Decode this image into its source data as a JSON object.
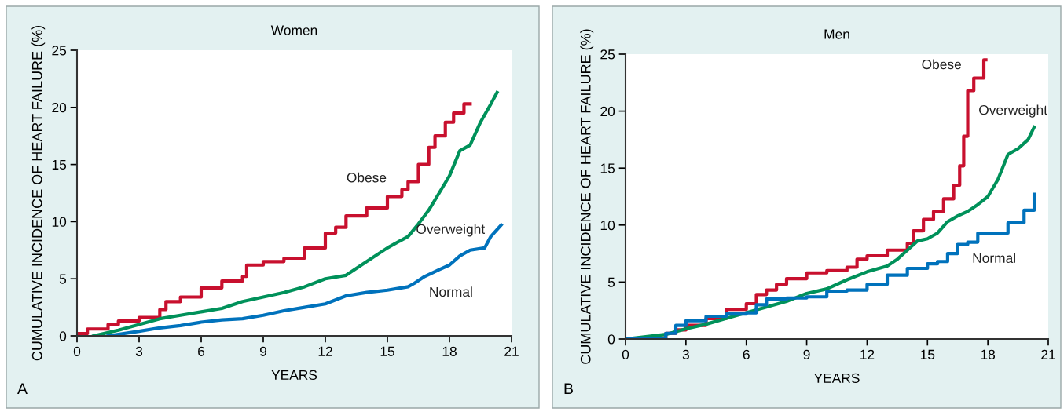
{
  "chart_data": [
    {
      "type": "line",
      "title": "Women",
      "xlabel": "YEARS",
      "ylabel": "CUMULATIVE INCIDENCE OF HEART FAILURE (%)",
      "xlim": [
        0,
        21
      ],
      "ylim": [
        0,
        25
      ],
      "xticks": [
        0,
        3,
        6,
        9,
        12,
        15,
        18,
        21
      ],
      "yticks": [
        0,
        5,
        10,
        15,
        20,
        25
      ],
      "grid": false,
      "legend": false,
      "annotations": [
        "A"
      ],
      "series": [
        {
          "name": "Obese",
          "type": "step",
          "color": "#c8102e",
          "x": [
            0,
            0.5,
            1.5,
            2,
            3,
            4,
            4.3,
            5,
            6,
            7,
            8,
            8.2,
            9,
            10,
            11,
            12,
            12.5,
            13,
            14,
            15,
            15.7,
            16,
            16.5,
            17,
            17.3,
            17.8,
            18.2,
            18.7,
            19
          ],
          "values": [
            0.2,
            0.6,
            1.0,
            1.3,
            1.6,
            2.3,
            3.0,
            3.4,
            4.2,
            4.8,
            5.2,
            6.2,
            6.5,
            6.8,
            7.7,
            9.0,
            9.5,
            10.5,
            11.2,
            12.2,
            12.8,
            13.5,
            15,
            16.5,
            17.5,
            18.7,
            19.5,
            20.3,
            20.3
          ]
        },
        {
          "name": "Overweight",
          "color": "#00915a",
          "x": [
            0.8,
            2,
            3,
            4,
            5,
            6,
            7,
            8,
            9,
            10,
            11,
            12,
            13,
            14,
            15,
            16,
            16.5,
            17,
            17.5,
            18,
            18.5,
            19,
            19.5,
            20,
            20.3
          ],
          "values": [
            0,
            0.5,
            1.0,
            1.5,
            1.8,
            2.1,
            2.4,
            3.0,
            3.4,
            3.8,
            4.3,
            5.0,
            5.3,
            6.5,
            7.7,
            8.7,
            9.8,
            11,
            12.5,
            14,
            16.2,
            16.7,
            18.7,
            20.3,
            21.3
          ]
        },
        {
          "name": "Normal",
          "color": "#0072bc",
          "x": [
            1.5,
            3,
            4,
            5,
            6,
            7,
            8,
            9,
            10,
            11,
            12,
            13,
            14,
            15,
            16,
            16.3,
            16.8,
            17.5,
            18,
            18.5,
            19,
            19.7,
            20,
            20.5
          ],
          "values": [
            0,
            0.4,
            0.7,
            0.9,
            1.2,
            1.4,
            1.5,
            1.8,
            2.2,
            2.5,
            2.8,
            3.5,
            3.8,
            4.0,
            4.3,
            4.6,
            5.2,
            5.8,
            6.2,
            7.0,
            7.5,
            7.7,
            8.7,
            9.7
          ]
        }
      ]
    },
    {
      "type": "line",
      "title": "Men",
      "xlabel": "YEARS",
      "ylabel": "CUMULATIVE INCIDENCE OF HEART FAILURE (%)",
      "xlim": [
        0,
        21
      ],
      "ylim": [
        0,
        25
      ],
      "xticks": [
        0,
        3,
        6,
        9,
        12,
        15,
        18,
        21
      ],
      "yticks": [
        0,
        5,
        10,
        15,
        20,
        25
      ],
      "grid": false,
      "legend": false,
      "annotations": [
        "B"
      ],
      "series": [
        {
          "name": "Obese",
          "type": "step",
          "color": "#c8102e",
          "x": [
            0,
            1.5,
            2,
            2.5,
            3,
            4,
            5,
            6,
            6.5,
            7,
            7.5,
            8,
            9,
            10,
            11,
            11.5,
            12,
            13,
            14,
            14.3,
            14.8,
            15.3,
            15.8,
            16.3,
            16.6,
            16.8,
            17,
            17.3,
            17.8,
            17.9
          ],
          "values": [
            0,
            0.1,
            0.5,
            0.8,
            1.2,
            1.8,
            2.6,
            3.1,
            3.9,
            4.3,
            4.8,
            5.3,
            5.8,
            6.0,
            6.3,
            7.0,
            7.3,
            7.8,
            8.4,
            9.5,
            10.5,
            11.2,
            12.3,
            13.5,
            15.2,
            17.8,
            21.8,
            22.9,
            24.5,
            24.5
          ]
        },
        {
          "name": "Overweight",
          "color": "#00915a",
          "x": [
            0,
            2,
            3,
            4,
            5,
            6,
            7,
            8,
            9,
            10,
            11,
            12,
            13,
            13.5,
            14,
            14.5,
            15,
            15.5,
            16,
            16.5,
            17,
            17.5,
            18,
            18.5,
            19,
            19.5,
            20,
            20.3
          ],
          "values": [
            0,
            0.4,
            0.9,
            1.3,
            1.8,
            2.3,
            2.8,
            3.3,
            4.0,
            4.4,
            5.2,
            5.9,
            6.4,
            7.0,
            7.8,
            8.6,
            8.8,
            9.3,
            10.3,
            10.8,
            11.2,
            11.8,
            12.5,
            14.0,
            16.2,
            16.7,
            17.5,
            18.6
          ]
        },
        {
          "name": "Normal",
          "type": "step",
          "color": "#0072bc",
          "x": [
            0,
            2,
            2.5,
            3,
            4,
            5,
            6,
            6.5,
            7,
            8,
            9,
            10,
            11,
            12,
            13,
            14,
            15,
            15.5,
            16,
            16.5,
            17,
            17.5,
            18.5,
            19,
            19.8,
            20.3
          ],
          "values": [
            0,
            0.5,
            1.2,
            1.6,
            2.0,
            2.2,
            2.3,
            3.0,
            3.5,
            3.6,
            3.7,
            4.2,
            4.3,
            4.8,
            5.6,
            6.2,
            6.6,
            6.8,
            7.5,
            8.3,
            8.5,
            9.3,
            9.3,
            10.2,
            11.3,
            12.7
          ]
        }
      ]
    }
  ]
}
